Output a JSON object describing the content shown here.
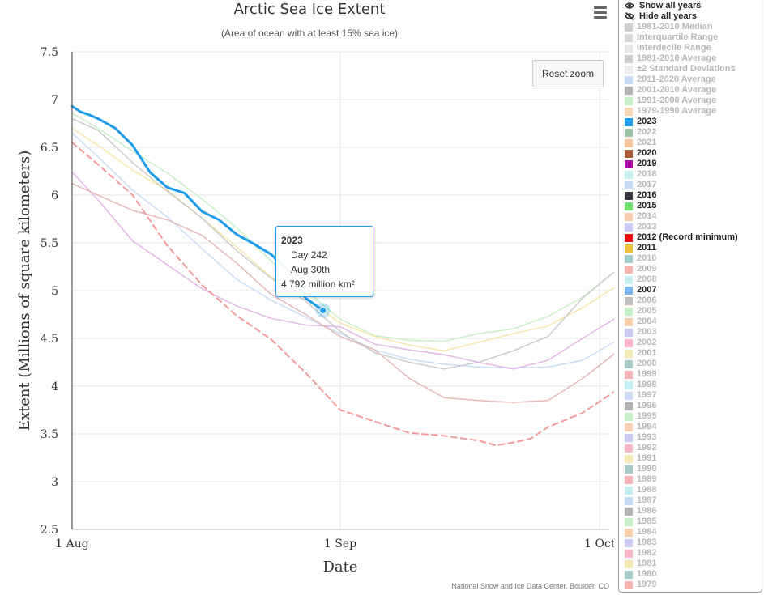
{
  "chart_data": {
    "type": "line",
    "title": "Arctic Sea Ice Extent",
    "subtitle": "(Area of ocean with at least 15% sea ice)",
    "xlabel": "Date",
    "ylabel": "Extent (Millions of square kilometers)",
    "xlim": [
      213,
      276
    ],
    "ylim": [
      2.5,
      7.5
    ],
    "x_ticks": [
      {
        "day": 213,
        "label": "1 Aug"
      },
      {
        "day": 244,
        "label": "1 Sep"
      },
      {
        "day": 274,
        "label": "1 Oct"
      }
    ],
    "y_ticks": [
      {
        "v": 2.5,
        "label": "2.5"
      },
      {
        "v": 3,
        "label": "3"
      },
      {
        "v": 3.5,
        "label": "3.5"
      },
      {
        "v": 4,
        "label": "4"
      },
      {
        "v": 4.5,
        "label": "4.5"
      },
      {
        "v": 5,
        "label": "5"
      },
      {
        "v": 5.5,
        "label": "5.5"
      },
      {
        "v": 6,
        "label": "6"
      },
      {
        "v": 6.5,
        "label": "6.5"
      },
      {
        "v": 7,
        "label": "7"
      },
      {
        "v": 7.5,
        "label": "7.5"
      }
    ],
    "grid": true,
    "series": [
      {
        "name": "2023",
        "color": "#1e9be9",
        "width": 3,
        "dash": false,
        "opacity": 1,
        "x": [
          213,
          214,
          215,
          216,
          218,
          220,
          222,
          224,
          226,
          228,
          230,
          232,
          234,
          236,
          238,
          240,
          242
        ],
        "y": [
          6.93,
          6.87,
          6.84,
          6.8,
          6.7,
          6.52,
          6.24,
          6.08,
          6.02,
          5.83,
          5.74,
          5.59,
          5.49,
          5.38,
          5.21,
          4.92,
          4.792
        ]
      },
      {
        "name": "2012 (Record minimum)",
        "color": "#f59a9a",
        "width": 2,
        "dash": true,
        "opacity": 1,
        "x": [
          213,
          216,
          220,
          224,
          228,
          232,
          236,
          240,
          244,
          248,
          252,
          256,
          260,
          262,
          264,
          266,
          268,
          272,
          276
        ],
        "y": [
          6.55,
          6.32,
          6.0,
          5.47,
          5.06,
          4.74,
          4.49,
          4.14,
          3.75,
          3.63,
          3.51,
          3.48,
          3.43,
          3.38,
          3.41,
          3.45,
          3.57,
          3.72,
          3.96
        ]
      },
      {
        "name": "2020",
        "color": "#e5b4b4",
        "width": 1.5,
        "dash": false,
        "opacity": 0.95,
        "x": [
          213,
          216,
          220,
          224,
          228,
          232,
          236,
          240,
          244,
          248,
          252,
          256,
          260,
          264,
          268,
          272,
          276
        ],
        "y": [
          6.12,
          6.0,
          5.84,
          5.74,
          5.58,
          5.29,
          4.96,
          4.75,
          4.52,
          4.38,
          4.08,
          3.88,
          3.85,
          3.83,
          3.85,
          4.08,
          4.36
        ]
      },
      {
        "name": "2019",
        "color": "#e3b3e6",
        "width": 1.5,
        "dash": false,
        "opacity": 0.95,
        "x": [
          213,
          216,
          220,
          224,
          228,
          232,
          236,
          240,
          244,
          248,
          252,
          256,
          260,
          264,
          268,
          272,
          276
        ],
        "y": [
          6.24,
          5.95,
          5.52,
          5.27,
          5.02,
          4.84,
          4.71,
          4.64,
          4.62,
          4.44,
          4.38,
          4.33,
          4.25,
          4.18,
          4.27,
          4.5,
          4.72
        ]
      },
      {
        "name": "2016",
        "color": "#c9c9c9",
        "width": 1.5,
        "dash": false,
        "opacity": 0.95,
        "x": [
          213,
          216,
          220,
          224,
          228,
          232,
          236,
          240,
          244,
          248,
          252,
          256,
          260,
          264,
          268,
          272,
          276
        ],
        "y": [
          6.8,
          6.68,
          6.34,
          6.04,
          5.76,
          5.42,
          5.13,
          4.89,
          4.57,
          4.35,
          4.25,
          4.18,
          4.25,
          4.37,
          4.52,
          4.92,
          5.22
        ]
      },
      {
        "name": "2007",
        "color": "#c8dcf4",
        "width": 1.5,
        "dash": false,
        "opacity": 0.95,
        "x": [
          213,
          216,
          220,
          224,
          228,
          232,
          236,
          240,
          244,
          248,
          252,
          256,
          260,
          264,
          268,
          272,
          276
        ],
        "y": [
          6.65,
          6.4,
          6.05,
          5.77,
          5.44,
          5.12,
          4.9,
          4.72,
          4.55,
          4.38,
          4.28,
          4.23,
          4.2,
          4.19,
          4.2,
          4.27,
          4.48
        ]
      },
      {
        "name": "2011",
        "color": "#f5e6a8",
        "width": 1.5,
        "dash": false,
        "opacity": 0.95,
        "x": [
          213,
          216,
          220,
          224,
          228,
          232,
          236,
          240,
          244,
          248,
          252,
          256,
          260,
          264,
          268,
          272,
          276
        ],
        "y": [
          6.7,
          6.52,
          6.26,
          6.05,
          5.76,
          5.46,
          5.14,
          4.92,
          4.66,
          4.52,
          4.43,
          4.37,
          4.46,
          4.55,
          4.63,
          4.82,
          5.05
        ]
      },
      {
        "name": "2015",
        "color": "#c6f0c6",
        "width": 1.5,
        "dash": false,
        "opacity": 0.95,
        "x": [
          213,
          216,
          220,
          224,
          228,
          232,
          236,
          240,
          244,
          248,
          252,
          256,
          260,
          264,
          268,
          272,
          276
        ],
        "y": [
          6.86,
          6.7,
          6.46,
          6.23,
          5.96,
          5.66,
          5.31,
          5.0,
          4.7,
          4.53,
          4.48,
          4.47,
          4.55,
          4.6,
          4.73,
          4.93,
          5.22
        ]
      }
    ],
    "tooltip": {
      "series": "2023",
      "day": 242,
      "value": 4.792,
      "title": "2023",
      "day_text": "Day 242",
      "date_text": "Aug 30th",
      "value_text": "4.792 million km²"
    },
    "credit": "National Snow and Ice Data Center, Boulder, CO"
  },
  "buttons": {
    "reset_zoom": "Reset zoom"
  },
  "icons": {
    "menu": "hamburger-menu-icon",
    "show_all": "eye-icon",
    "hide_all": "eye-slash-icon"
  },
  "legend": {
    "show_all": "Show all years",
    "hide_all": "Hide all years",
    "items": [
      {
        "label": "1981-2010 Median",
        "color": "#cfcfcf",
        "active": false
      },
      {
        "label": "Interquartile Range",
        "color": "#d9d9d9",
        "active": false
      },
      {
        "label": "Interdecile Range",
        "color": "#e6e6e6",
        "active": false
      },
      {
        "label": "1981-2010 Average",
        "color": "#cccccc",
        "active": false
      },
      {
        "label": "±2 Standard Deviations",
        "color": "#ececec",
        "active": false
      },
      {
        "label": "2011-2020 Average",
        "color": "#c8dcf4",
        "active": false
      },
      {
        "label": "2001-2010 Average",
        "color": "#b4b4b4",
        "active": false
      },
      {
        "label": "1991-2000 Average",
        "color": "#c8f0c8",
        "active": false
      },
      {
        "label": "1979-1990 Average",
        "color": "#f8d6b8",
        "active": false
      },
      {
        "label": "2023",
        "color": "#1e9be9",
        "active": true
      },
      {
        "label": "2022",
        "color": "#9cc4a8",
        "active": false
      },
      {
        "label": "2021",
        "color": "#f8c8a0",
        "active": false
      },
      {
        "label": "2020",
        "color": "#a85c3c",
        "active": true
      },
      {
        "label": "2019",
        "color": "#a814a8",
        "active": true
      },
      {
        "label": "2018",
        "color": "#c8f0f4",
        "active": false
      },
      {
        "label": "2017",
        "color": "#c8dcf4",
        "active": false
      },
      {
        "label": "2016",
        "color": "#3c3c44",
        "active": true
      },
      {
        "label": "2015",
        "color": "#74e074",
        "active": true
      },
      {
        "label": "2014",
        "color": "#f8ccb0",
        "active": false
      },
      {
        "label": "2013",
        "color": "#ccccf4",
        "active": false
      },
      {
        "label": "2012 (Record minimum)",
        "color": "#f01010",
        "active": true
      },
      {
        "label": "2011",
        "color": "#f0c040",
        "active": true
      },
      {
        "label": "2010",
        "color": "#a8cccc",
        "active": false
      },
      {
        "label": "2009",
        "color": "#f8b4b4",
        "active": false
      },
      {
        "label": "2008",
        "color": "#c8f0f4",
        "active": false
      },
      {
        "label": "2007",
        "color": "#7cb4ec",
        "active": true
      },
      {
        "label": "2006",
        "color": "#c0c0c0",
        "active": false
      },
      {
        "label": "2005",
        "color": "#c8f0c8",
        "active": false
      },
      {
        "label": "2004",
        "color": "#f8d0b0",
        "active": false
      },
      {
        "label": "2003",
        "color": "#ccccf4",
        "active": false
      },
      {
        "label": "2002",
        "color": "#f8b8c8",
        "active": false
      },
      {
        "label": "2001",
        "color": "#f4e8b4",
        "active": false
      },
      {
        "label": "2000",
        "color": "#a8cccc",
        "active": false
      },
      {
        "label": "1999",
        "color": "#f8b4b4",
        "active": false
      },
      {
        "label": "1998",
        "color": "#c8f0f0",
        "active": false
      },
      {
        "label": "1997",
        "color": "#c8dcf4",
        "active": false
      },
      {
        "label": "1996",
        "color": "#b4b4b4",
        "active": false
      },
      {
        "label": "1995",
        "color": "#c8f0c8",
        "active": false
      },
      {
        "label": "1994",
        "color": "#f8d0b0",
        "active": false
      },
      {
        "label": "1993",
        "color": "#ccccf4",
        "active": false
      },
      {
        "label": "1992",
        "color": "#f8b8c8",
        "active": false
      },
      {
        "label": "1991",
        "color": "#f4e8b4",
        "active": false
      },
      {
        "label": "1990",
        "color": "#a8cccc",
        "active": false
      },
      {
        "label": "1989",
        "color": "#f8b4b4",
        "active": false
      },
      {
        "label": "1988",
        "color": "#c8f0f4",
        "active": false
      },
      {
        "label": "1987",
        "color": "#c8dcf4",
        "active": false
      },
      {
        "label": "1986",
        "color": "#b4b4b4",
        "active": false
      },
      {
        "label": "1985",
        "color": "#c8f0c8",
        "active": false
      },
      {
        "label": "1984",
        "color": "#f8d0b0",
        "active": false
      },
      {
        "label": "1983",
        "color": "#ccccf4",
        "active": false
      },
      {
        "label": "1982",
        "color": "#f8b8c8",
        "active": false
      },
      {
        "label": "1981",
        "color": "#f4e8b4",
        "active": false
      },
      {
        "label": "1980",
        "color": "#a8cccc",
        "active": false
      },
      {
        "label": "1979",
        "color": "#f8b4b4",
        "active": false
      }
    ]
  }
}
